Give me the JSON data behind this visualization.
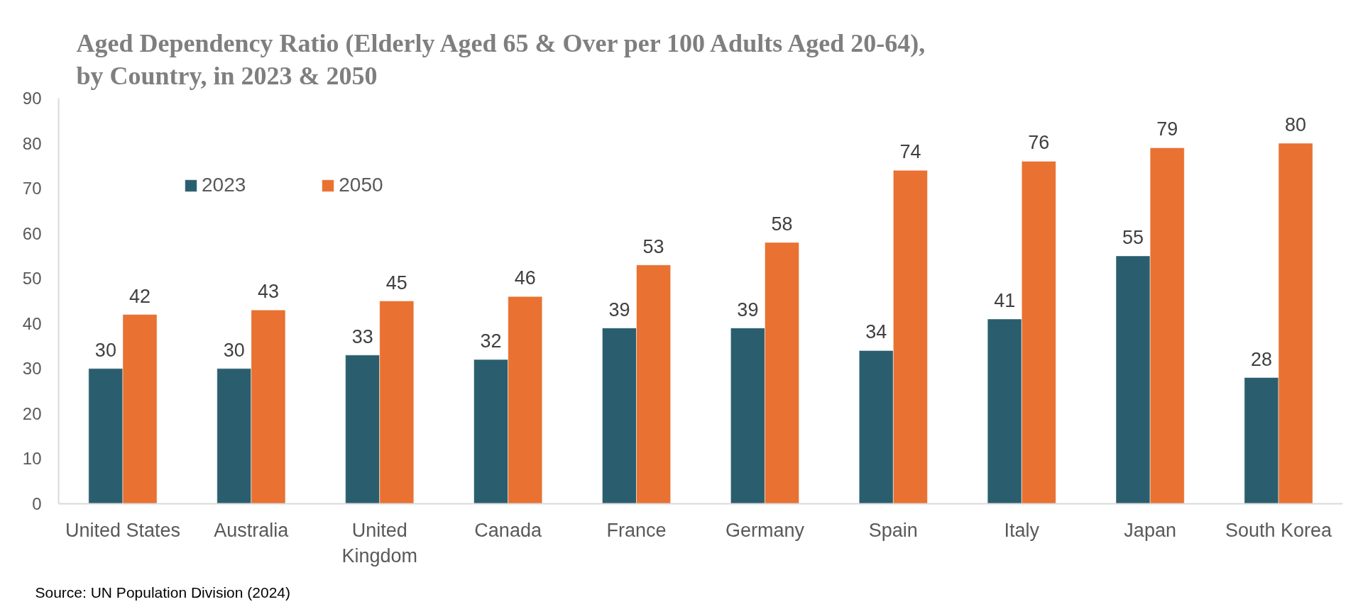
{
  "chart_data": {
    "type": "bar",
    "title": "Aged Dependency Ratio (Elderly Aged 65 & Over per 100 Adults Aged 20-64), by Country, in 2023 & 2050",
    "categories": [
      "United States",
      "Australia",
      "United Kingdom",
      "Canada",
      "France",
      "Germany",
      "Spain",
      "Italy",
      "Japan",
      "South Korea"
    ],
    "series": [
      {
        "name": "2023",
        "color": "#2a5e6e",
        "values": [
          30,
          30,
          33,
          32,
          39,
          39,
          34,
          41,
          55,
          28
        ]
      },
      {
        "name": "2050",
        "color": "#e97132",
        "values": [
          42,
          43,
          45,
          46,
          53,
          58,
          74,
          76,
          79,
          80
        ]
      }
    ],
    "ylim": [
      0,
      90
    ],
    "yticks": [
      0,
      10,
      20,
      30,
      40,
      50,
      60,
      70,
      80,
      90
    ],
    "legend": "top left",
    "data_labels": true,
    "annotations": [
      "Source: UN Population Division (2024)"
    ]
  }
}
